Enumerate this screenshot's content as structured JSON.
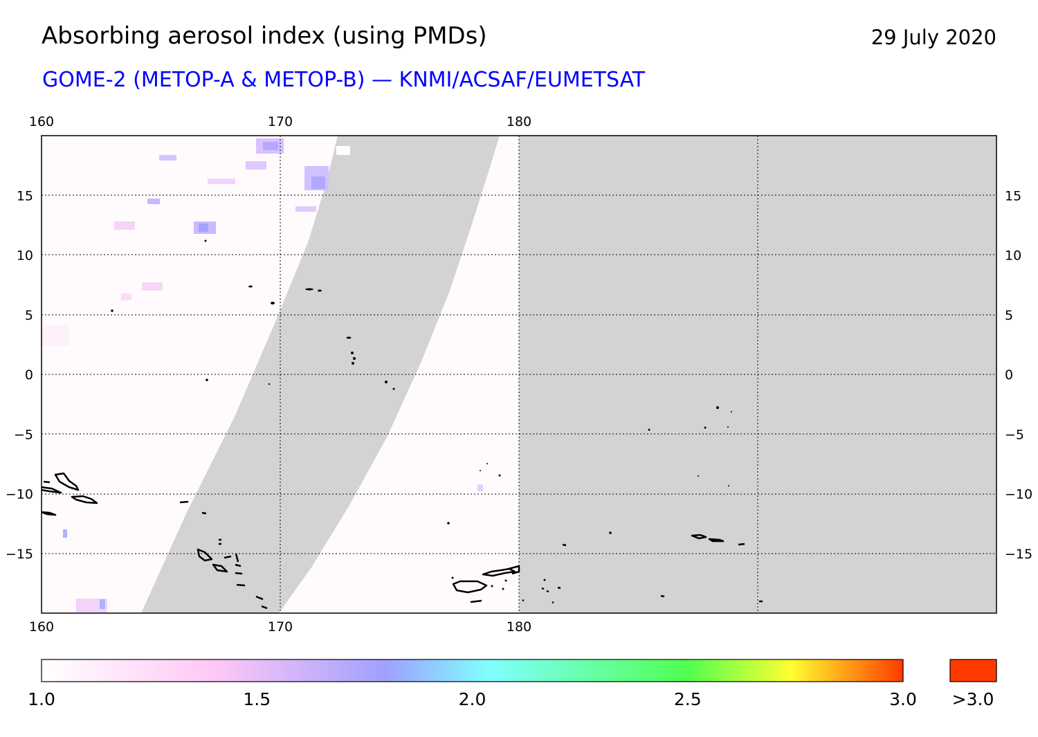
{
  "header": {
    "title": "Absorbing aerosol index (using PMDs)",
    "date": "29 July 2020",
    "subtitle": "GOME-2 (METOP-A & METOP-B) — KNMI/ACSAF/EUMETSAT"
  },
  "map": {
    "lon_range": [
      160,
      200
    ],
    "lat_range": [
      -20,
      20
    ],
    "lon_ticks": [
      {
        "value": 160,
        "label": "160"
      },
      {
        "value": 170,
        "label": "170"
      },
      {
        "value": 180,
        "label": "180"
      }
    ],
    "lat_ticks": [
      {
        "value": 15,
        "label": "15"
      },
      {
        "value": 10,
        "label": "10"
      },
      {
        "value": 5,
        "label": "5"
      },
      {
        "value": 0,
        "label": "0"
      },
      {
        "value": -5,
        "label": "−5"
      },
      {
        "value": -10,
        "label": "−10"
      },
      {
        "value": -15,
        "label": "−15"
      }
    ],
    "no_data_color": "#d3d3d3",
    "coastline_color": "#000000",
    "grid_style": "dotted"
  },
  "colorbar": {
    "range": [
      1.0,
      3.0
    ],
    "tick_labels": [
      "1.0",
      "1.5",
      "2.0",
      "2.5",
      "3.0"
    ],
    "overflow_label": ">3.0",
    "overflow_color": "#ff3b00",
    "stops": [
      "#ffffff",
      "#ffc8f5",
      "#a0a0ff",
      "#80ffff",
      "#50ff50",
      "#ffff30",
      "#ff3b00"
    ]
  }
}
